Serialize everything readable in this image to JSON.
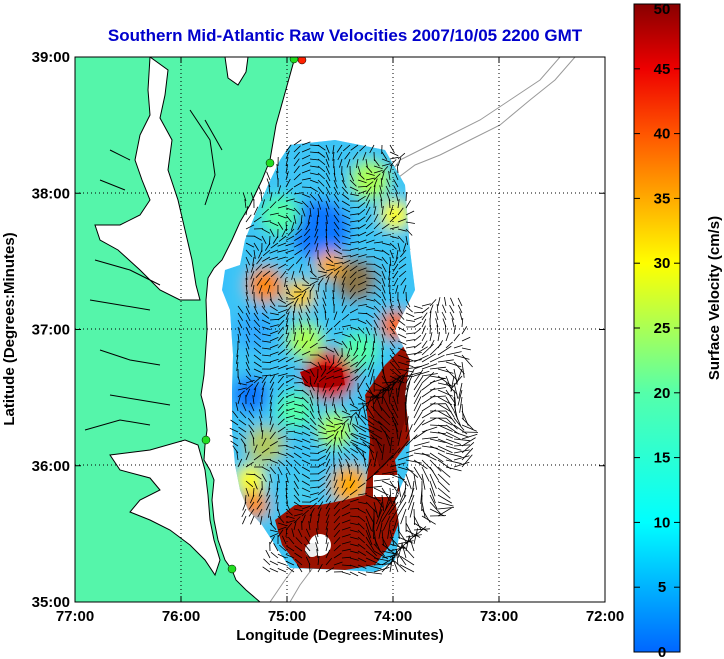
{
  "chart_data": {
    "type": "heatmap",
    "title": "Southern Mid-Atlantic Raw Velocities 2007/10/05 2200 GMT",
    "xlabel": "Longitude (Degrees:Minutes)",
    "ylabel": "Latitude (Degrees:Minutes)",
    "colorbar_label": "Surface Velocity (cm/s)",
    "x_ticks": [
      "77:00",
      "76:00",
      "75:00",
      "74:00",
      "73:00",
      "72:00"
    ],
    "x_tick_values": [
      -77,
      -76,
      -75,
      -74,
      -73,
      -72
    ],
    "y_ticks": [
      "39:00",
      "38:00",
      "37:00",
      "36:00",
      "35:00"
    ],
    "y_tick_values": [
      39,
      38,
      37,
      36,
      35
    ],
    "xlim": [
      -77,
      -72
    ],
    "ylim": [
      35,
      39
    ],
    "colorbar_ticks": [
      50,
      45,
      40,
      35,
      30,
      25,
      20,
      15,
      10,
      5,
      0
    ],
    "colorbar_range": [
      0,
      50
    ],
    "grid": "dotted",
    "colors": {
      "title": "#0000cc",
      "land": "#55f5aa",
      "coast": "#000000",
      "bathymetry": "#999999",
      "vectors": "#000000",
      "station": "#22dd22",
      "station_active": "#ff2200"
    }
  }
}
